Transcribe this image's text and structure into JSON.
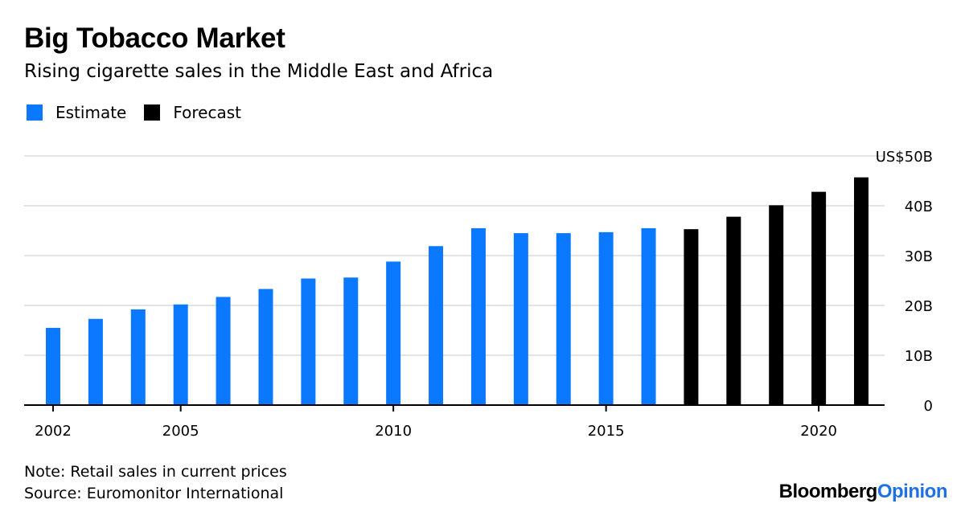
{
  "title": "Big Tobacco Market",
  "subtitle": "Rising cigarette sales in the Middle East and Africa",
  "legend": {
    "estimate_label": "Estimate",
    "forecast_label": "Forecast",
    "estimate_color": "#0a78ff",
    "forecast_color": "#000000"
  },
  "notes": {
    "note": "Note: Retail sales in current prices",
    "source": "Source: Euromonitor International"
  },
  "brand": {
    "part1": "Bloomberg",
    "part2": "Opinion"
  },
  "chart_data": {
    "type": "bar",
    "categories": [
      "2002",
      "2003",
      "2004",
      "2005",
      "2006",
      "2007",
      "2008",
      "2009",
      "2010",
      "2011",
      "2012",
      "2013",
      "2014",
      "2015",
      "2016",
      "2017",
      "2018",
      "2019",
      "2020",
      "2021"
    ],
    "series": [
      {
        "name": "Estimate",
        "color": "#0a78ff",
        "values": [
          15.5,
          17.3,
          19.2,
          20.2,
          21.7,
          23.3,
          25.4,
          25.6,
          28.8,
          31.9,
          35.5,
          34.5,
          34.5,
          34.7,
          35.5,
          null,
          null,
          null,
          null,
          null
        ]
      },
      {
        "name": "Forecast",
        "color": "#000000",
        "values": [
          null,
          null,
          null,
          null,
          null,
          null,
          null,
          null,
          null,
          null,
          null,
          null,
          null,
          null,
          null,
          35.3,
          37.8,
          40.1,
          42.8,
          45.7
        ]
      }
    ],
    "x_tick_labels": [
      "2002",
      "2005",
      "2010",
      "2015",
      "2020"
    ],
    "y_ticks": [
      0,
      10,
      20,
      30,
      40,
      50
    ],
    "y_tick_labels": [
      "0",
      "10B",
      "20B",
      "30B",
      "40B",
      "US$50B"
    ],
    "ylim": [
      0,
      50
    ],
    "grid": true,
    "y_axis_position": "right",
    "xlabel": "",
    "ylabel": ""
  }
}
